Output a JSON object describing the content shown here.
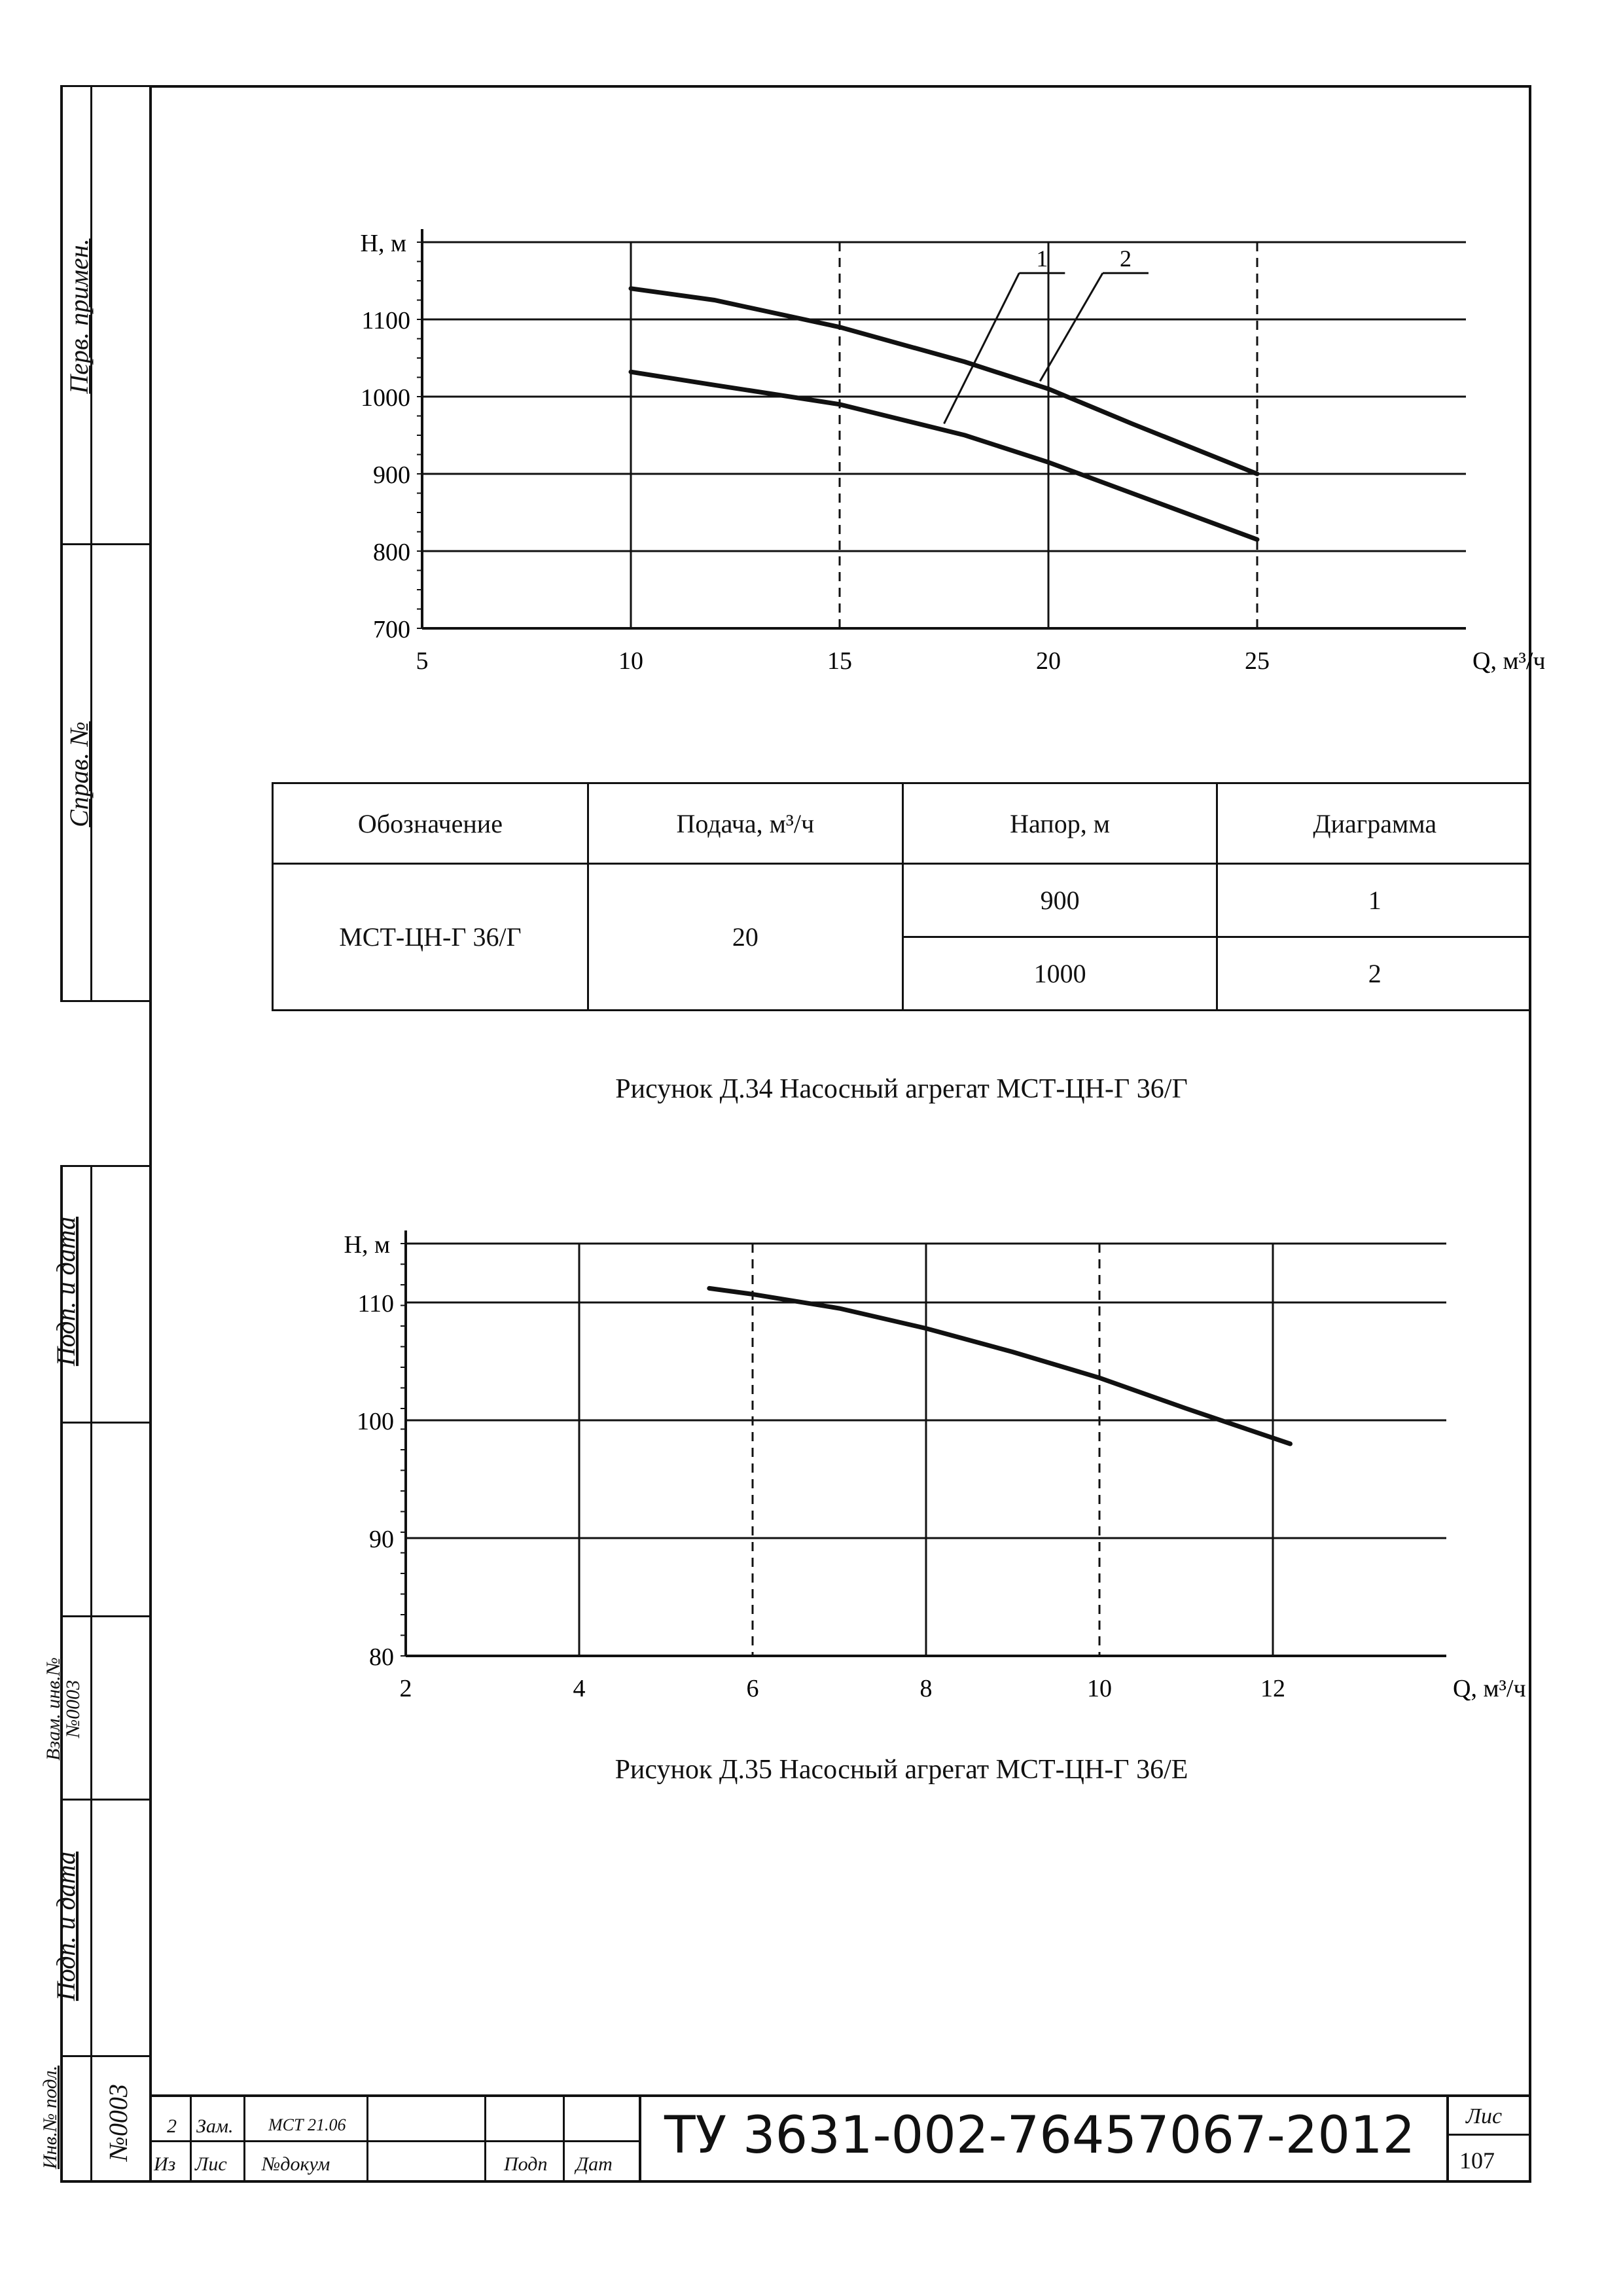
{
  "sidebar": {
    "perv_primen": "Перв. примен.",
    "sprav_no": "Справ. №",
    "podp_data_1": "Подп. и дата",
    "vzam_inv": "Взам. инв.№",
    "vzam_inv_num": "№0003",
    "podp_data_2": "Подп. и дата",
    "inv_podl": "Инв.№ подл.",
    "inv_podl_num": "№0003"
  },
  "figure1": {
    "caption": "Рисунок Д.34 Насосный агрегат МСТ-ЦН-Г 36/Г"
  },
  "table": {
    "headers": [
      "Обозначение",
      "Подача, м³/ч",
      "Напор, м",
      "Диаграмма"
    ],
    "designation": "МСТ-ЦН-Г 36/Г",
    "flow": "20",
    "rows": [
      {
        "head": "900",
        "diagram": "1"
      },
      {
        "head": "1000",
        "diagram": "2"
      }
    ]
  },
  "figure2": {
    "caption": "Рисунок Д.35 Насосный агрегат МСТ-ЦН-Г 36/Е"
  },
  "chart_data": [
    {
      "type": "line",
      "ylabel": "Н, м",
      "xlabel": "Q, м³/ч",
      "xlim": [
        5,
        30
      ],
      "ylim": [
        700,
        1200
      ],
      "x_ticks": [
        5,
        10,
        15,
        20,
        25
      ],
      "y_ticks": [
        700,
        800,
        900,
        1000,
        1100
      ],
      "series": [
        {
          "name": "1",
          "x": [
            10,
            12,
            15,
            18,
            20,
            22,
            25
          ],
          "y": [
            1032,
            1015,
            990,
            950,
            915,
            875,
            815
          ]
        },
        {
          "name": "2",
          "x": [
            10,
            12,
            15,
            18,
            20,
            22,
            25
          ],
          "y": [
            1140,
            1125,
            1090,
            1045,
            1010,
            965,
            900
          ]
        }
      ]
    },
    {
      "type": "line",
      "ylabel": "Н, м",
      "xlabel": "Q, м³/ч",
      "xlim": [
        2,
        14
      ],
      "ylim": [
        80,
        115
      ],
      "x_ticks": [
        2,
        4,
        6,
        8,
        10,
        12
      ],
      "y_ticks": [
        80,
        90,
        100,
        110
      ],
      "series": [
        {
          "name": "",
          "x": [
            5.5,
            6,
            7,
            8,
            9,
            10,
            11,
            12.2
          ],
          "y": [
            111.2,
            110.7,
            109.5,
            107.8,
            105.8,
            103.6,
            101,
            98
          ]
        }
      ]
    }
  ],
  "title_block": {
    "rev_num": "2",
    "change": "Зам.",
    "doc_ref": "МСТ 21.06",
    "col_iz": "Из",
    "col_lis": "Лис",
    "col_doc": "№докум",
    "col_podp": "Подп",
    "col_dat": "Дат",
    "doc_number": "ТУ 3631-002-76457067-2012",
    "sheet_label": "Лис",
    "sheet_num": "107"
  }
}
